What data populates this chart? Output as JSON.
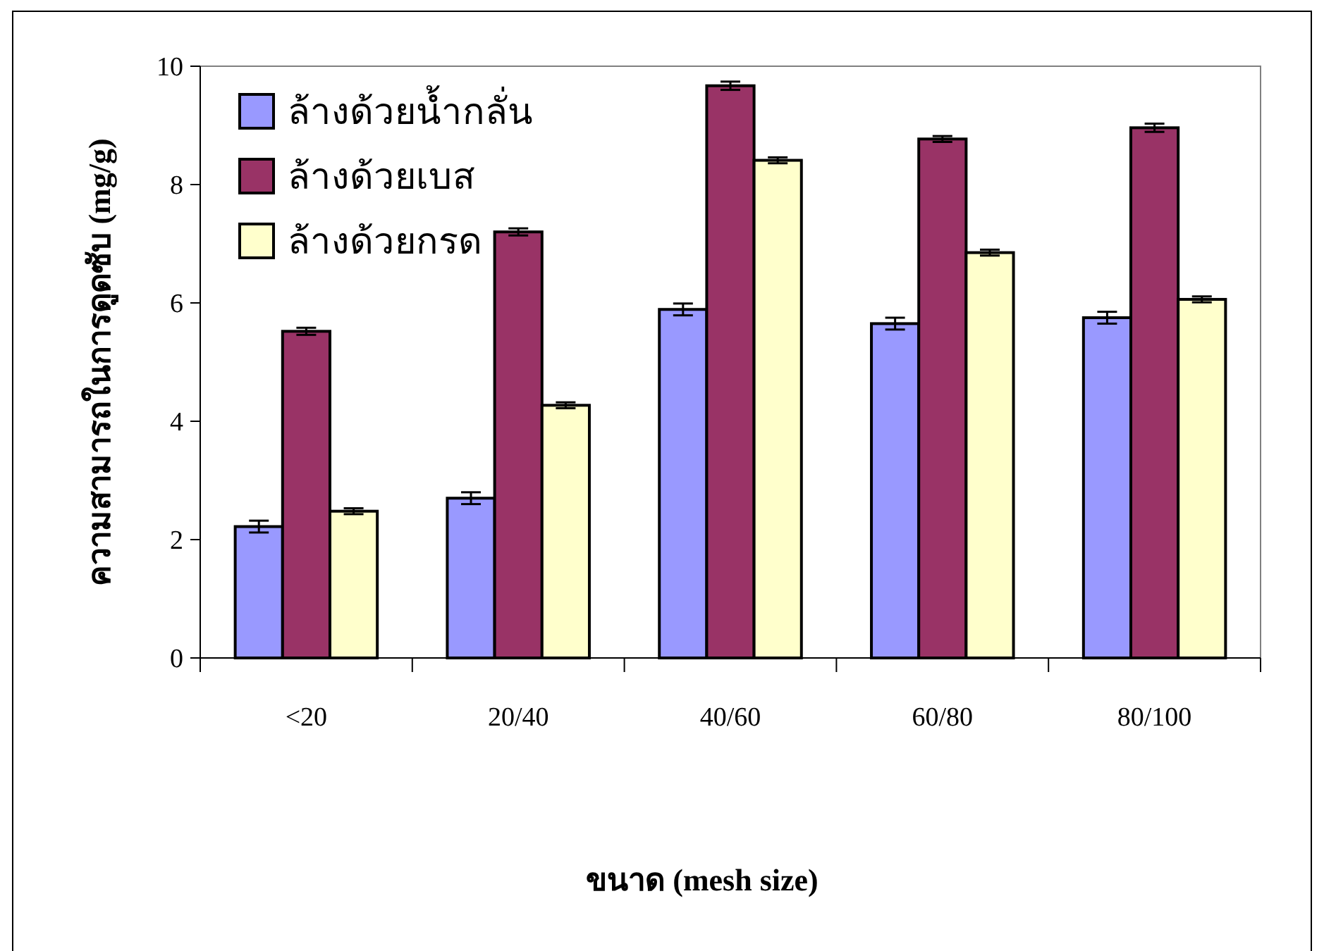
{
  "chart_data": {
    "type": "bar",
    "xlabel": "ขนาด (mesh size)",
    "ylabel": "ความสามารถในการดูดซับ (mg/g)",
    "categories": [
      "<20",
      "20/40",
      "40/60",
      "60/80",
      "80/100"
    ],
    "series": [
      {
        "name": "ล้างด้วยน้ำกลั่น",
        "color": "#9999ff",
        "values": [
          2.22,
          2.7,
          5.89,
          5.65,
          5.75
        ],
        "errors": [
          0.1,
          0.1,
          0.1,
          0.1,
          0.1
        ]
      },
      {
        "name": "ล้างด้วยเบส",
        "color": "#993366",
        "values": [
          5.52,
          7.2,
          9.67,
          8.77,
          8.96
        ],
        "errors": [
          0.06,
          0.06,
          0.07,
          0.05,
          0.07
        ]
      },
      {
        "name": "ล้างด้วยกรด",
        "color": "#ffffcc",
        "values": [
          2.48,
          4.27,
          8.41,
          6.85,
          6.06
        ],
        "errors": [
          0.05,
          0.05,
          0.05,
          0.05,
          0.05
        ]
      }
    ],
    "ylim": [
      0,
      10
    ],
    "yticks": [
      0,
      2,
      4,
      6,
      8,
      10
    ],
    "grid": false,
    "legend": "top left"
  }
}
